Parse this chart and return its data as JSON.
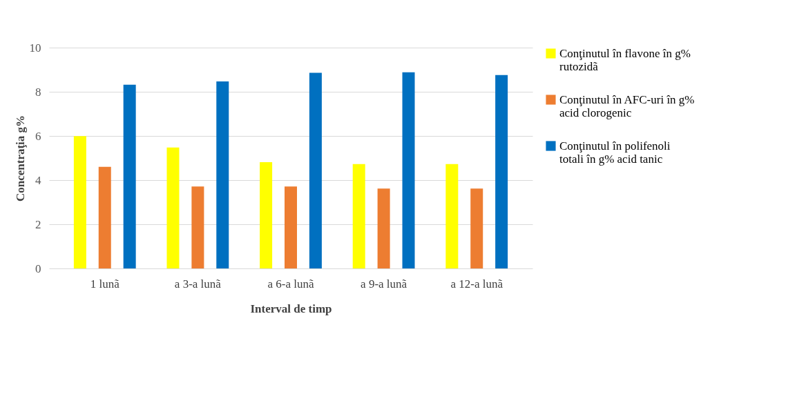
{
  "chart_data": {
    "type": "bar",
    "xlabel": "Interval de timp",
    "ylabel": "Concentraţia g%",
    "categories": [
      "1 lunã",
      "a 3-a lunã",
      "a 6-a lunã",
      "a 9-a lunã",
      "a 12-a lunã"
    ],
    "series": [
      {
        "name": "Conţinutul în flavone în g% rutozidã",
        "color": "#ffff00",
        "values": [
          5.99,
          5.48,
          4.81,
          4.73,
          4.73
        ]
      },
      {
        "name": "Conţinutul în AFC-uri în g% acid clorogenic",
        "color": "#ed7d31",
        "values": [
          4.6,
          3.71,
          3.71,
          3.62,
          3.62
        ]
      },
      {
        "name": "Conţinutul în polifenoli totali în g% acid tanic",
        "color": "#0070c0",
        "values": [
          8.32,
          8.47,
          8.86,
          8.88,
          8.76
        ]
      }
    ],
    "ylim": [
      0,
      10
    ],
    "yticks": [
      0,
      2,
      4,
      6,
      8,
      10
    ],
    "grid": "y",
    "legend": "right"
  }
}
